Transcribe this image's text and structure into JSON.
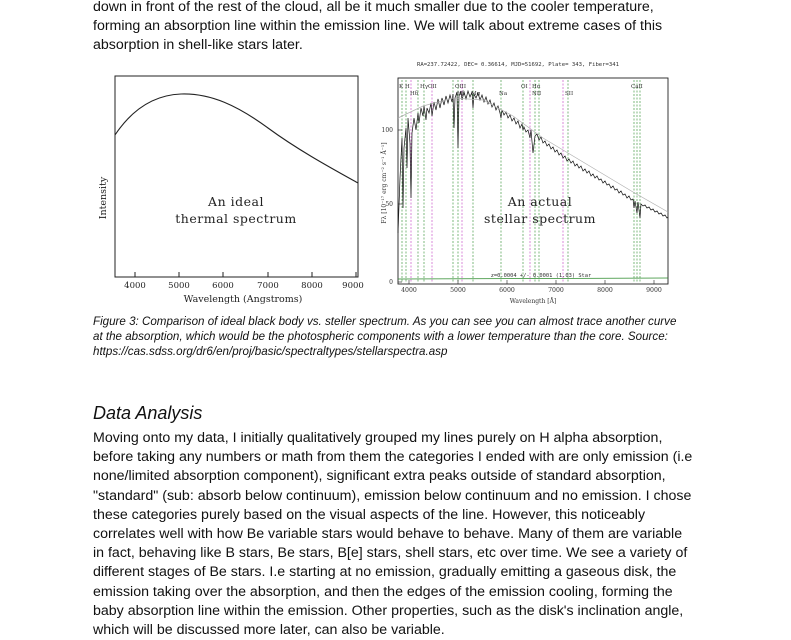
{
  "top_paragraph": {
    "lines": [
      "down in front of the rest of the cloud, all be it much smaller due to the cooler temperature,",
      "forming an absorption line within the emission line. We will talk about extreme cases of this",
      "absorption in shell-like stars later."
    ]
  },
  "figure": {
    "left_panel": {
      "ylabel": "Intensity",
      "xlabel": "Wavelength (Angstroms)",
      "annotation_line1": "An ideal",
      "annotation_line2": "thermal spectrum",
      "xticks": [
        "4000",
        "5000",
        "6000",
        "7000",
        "8000",
        "9000"
      ]
    },
    "right_panel": {
      "header": "RA=237.72422, DEC= 0.36614, MJD=51692, Plate= 343, Fiber=341",
      "annotation_line1": "An actual",
      "annotation_line2": "stellar spectrum",
      "ylabel": "Fλ [10⁻¹⁷ erg cm⁻² s⁻¹ Å⁻¹]",
      "xlabel": "Wavelength [Å]",
      "xticks": [
        "4000",
        "5000",
        "6000",
        "7000",
        "8000",
        "9000"
      ],
      "yticks": [
        "0",
        "50",
        "100"
      ],
      "redshift_note": "z=0.0004 +/- 0.0001 (1.03) Star",
      "line_labels": [
        "K",
        "H",
        "Hδ",
        "Hγ",
        "OII",
        "OIII",
        "Hβ",
        "Mg",
        "Na",
        "OI",
        "Hα",
        "NII",
        "SII",
        "CaII"
      ]
    }
  },
  "caption": {
    "lines": [
      "Figure 3: Comparison of ideal black body vs. steller spectrum. As you can see you can almost trace another curve",
      "at the absorption, which would be the photospheric components with a lower temperature than the core. Source:",
      "https://cas.sdss.org/dr6/en/proj/basic/spectraltypes/stellarspectra.asp"
    ]
  },
  "section": {
    "heading": "Data Analysis"
  },
  "body_paragraph": {
    "lines": [
      "Moving onto my data, I initially qualitatively grouped my lines purely on H alpha absorption,",
      "before taking any numbers or math from them the categories I ended with are only emission (i.e",
      "none/limited absorption component), significant extra peaks outside of standard absorption,",
      "\"standard\" (sub: absorb below continuum), emission below continuum and no emission. I chose",
      "these categories purely based on the visual aspects of the line. However, this noticeably",
      "correlates well with how Be variable stars would behave to behave. Many of them are variable",
      "in fact, behaving like B stars, Be stars, B[e] stars, shell stars, etc over time. We see a variety of",
      "different stages of Be stars. I.e starting at no emission, gradually emitting a gaseous disk, the",
      "emission taking over the absorption, and then the edges of the emission cooling, forming the",
      "baby absorption line within the emission. Other properties, such as the disk's inclination angle,",
      "which will be discussed more later, can also be variable."
    ]
  }
}
